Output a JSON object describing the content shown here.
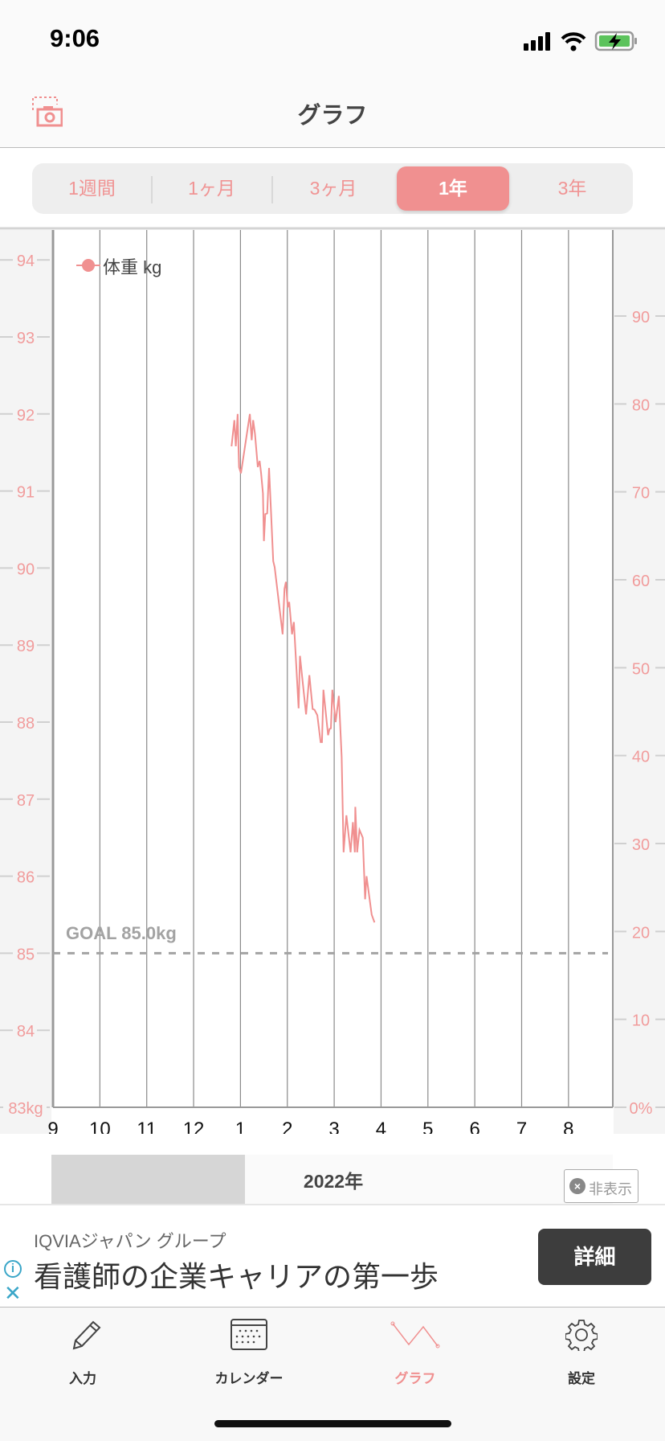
{
  "status": {
    "time": "9:06"
  },
  "header": {
    "title": "グラフ"
  },
  "periods": [
    {
      "label": "1週間",
      "active": false
    },
    {
      "label": "1ヶ月",
      "active": false
    },
    {
      "label": "3ヶ月",
      "active": false
    },
    {
      "label": "1年",
      "active": true
    },
    {
      "label": "3年",
      "active": false
    }
  ],
  "colors": {
    "accent": "#f09090",
    "axis_text": "#f19c9c",
    "goal": "#a3a3a3"
  },
  "chart_data": {
    "type": "line",
    "legend": "体重 kg",
    "legend_position": "top-left",
    "goal_label": "GOAL 85.0kg",
    "goal_value": 85.0,
    "x_ticks": [
      "9",
      "10",
      "11",
      "12",
      "1",
      "2",
      "3",
      "4",
      "5",
      "6",
      "7",
      "8"
    ],
    "x_unit": "month index (0 = Sep 2021)",
    "y_left_ticks": [
      "94",
      "93",
      "92",
      "91",
      "90",
      "89",
      "88",
      "87",
      "86",
      "85",
      "84",
      "83kg"
    ],
    "y_left_range": [
      83,
      94
    ],
    "y_right_ticks": [
      "90",
      "80",
      "70",
      "60",
      "50",
      "40",
      "30",
      "20",
      "10",
      "0%"
    ],
    "y_right_range": [
      0,
      100
    ],
    "year_label": "2022年",
    "series": [
      {
        "name": "体重 kg",
        "x": [
          3.81,
          3.87,
          3.9,
          3.94,
          3.97,
          4.01,
          4.2,
          4.24,
          4.27,
          4.31,
          4.37,
          4.41,
          4.44,
          4.48,
          4.5,
          4.53,
          4.57,
          4.61,
          4.7,
          4.73,
          4.9,
          4.94,
          4.97,
          5.01,
          5.04,
          5.1,
          5.14,
          5.24,
          5.27,
          5.4,
          5.47,
          5.54,
          5.58,
          5.64,
          5.71,
          5.74,
          5.77,
          5.87,
          5.9,
          5.93,
          5.96,
          6.03,
          6.1,
          6.16,
          6.2,
          6.26,
          6.35,
          6.4,
          6.44,
          6.45,
          6.49,
          6.54,
          6.61,
          6.66,
          6.69,
          6.8,
          6.86
        ],
        "y": [
          91.58,
          91.92,
          91.58,
          92.0,
          91.31,
          91.23,
          92.0,
          91.66,
          91.92,
          91.74,
          91.31,
          91.39,
          91.23,
          90.97,
          90.35,
          90.7,
          90.71,
          91.3,
          90.09,
          90.01,
          89.14,
          89.73,
          89.82,
          89.49,
          89.56,
          89.14,
          89.3,
          88.18,
          88.86,
          88.1,
          88.61,
          88.17,
          88.16,
          88.09,
          87.74,
          87.74,
          88.42,
          87.83,
          87.91,
          87.92,
          88.42,
          88.0,
          88.34,
          87.55,
          86.31,
          86.79,
          86.31,
          86.7,
          86.31,
          86.9,
          86.31,
          86.6,
          86.5,
          85.7,
          86.0,
          85.5,
          85.4
        ]
      }
    ]
  },
  "hide_button": "非表示",
  "ad": {
    "sponsor": "IQVIAジャパン グループ",
    "headline": "看護師の企業キャリアの第一歩",
    "cta": "詳細"
  },
  "tabs": [
    {
      "label": "入力"
    },
    {
      "label": "カレンダー"
    },
    {
      "label": "グラフ",
      "active": true
    },
    {
      "label": "設定"
    }
  ]
}
